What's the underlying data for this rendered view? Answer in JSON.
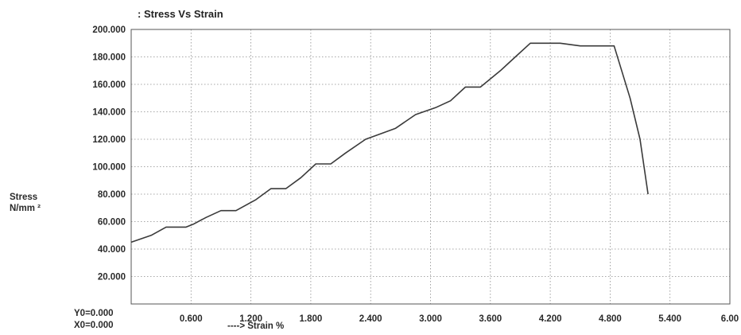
{
  "chart_data": {
    "type": "line",
    "title": ": Stress Vs Strain",
    "ylabel_line1": "Stress",
    "ylabel_line2": "N/mm ²",
    "xlabel": "---->  Strain   %",
    "origin_y_label": "Y0=0.000",
    "origin_x_label": "X0=0.000",
    "xlim": [
      0,
      6.0
    ],
    "ylim": [
      0,
      200
    ],
    "grid": true,
    "x_ticks": [
      "0.600",
      "1.200",
      "1.800",
      "2.400",
      "3.000",
      "3.600",
      "4.200",
      "4.800",
      "5.400",
      "6.00"
    ],
    "y_ticks": [
      "20.000",
      "40.000",
      "60.000",
      "80.000",
      "100.000",
      "120.000",
      "140.000",
      "160.000",
      "180.000",
      "200.000"
    ],
    "series": [
      {
        "x": [
          0.0,
          0.2,
          0.35,
          0.55,
          0.62,
          0.75,
          0.9,
          1.05,
          1.25,
          1.4,
          1.55,
          1.7,
          1.85,
          2.0,
          2.15,
          2.35,
          2.5,
          2.65,
          2.85,
          3.05,
          3.2,
          3.35,
          3.5,
          3.7,
          3.85,
          4.0,
          4.15,
          4.3,
          4.5,
          4.7,
          4.84,
          5.0,
          5.1,
          5.18
        ],
        "y": [
          45,
          50,
          56,
          56,
          58,
          63,
          68,
          68,
          76,
          84,
          84,
          92,
          102,
          102,
          110,
          120,
          124,
          128,
          138,
          143,
          148,
          158,
          158,
          170,
          180,
          190,
          190,
          190,
          188,
          188,
          188,
          150,
          120,
          80
        ]
      }
    ]
  }
}
